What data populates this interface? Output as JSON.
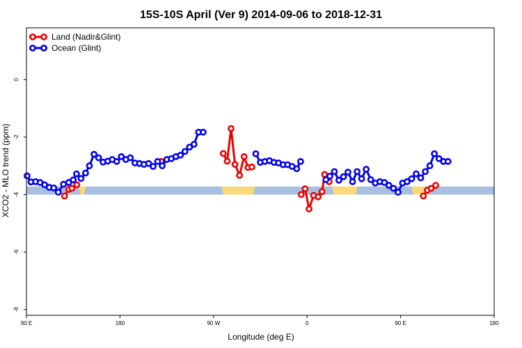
{
  "chart_data": {
    "type": "line",
    "title": "15S-10S April (Ver 9)   2014-09-06 to 2018-12-31",
    "xlabel": "Longitude (deg E)",
    "ylabel": "XCO2 - MLO trend (ppm)",
    "x_domain": [
      90,
      450
    ],
    "xlim": [
      90,
      450
    ],
    "ylim": [
      -8.2,
      1.8
    ],
    "x_ticks": [
      {
        "value": 90,
        "label": "90 E"
      },
      {
        "value": 162,
        "label": "180"
      },
      {
        "value": 234,
        "label": "90 W"
      },
      {
        "value": 306,
        "label": "0"
      },
      {
        "value": 378,
        "label": "90 E"
      },
      {
        "value": 450,
        "label": "180"
      }
    ],
    "y_ticks": [
      {
        "value": 0,
        "label": "0"
      },
      {
        "value": -2,
        "label": "-2"
      },
      {
        "value": -4,
        "label": "-4"
      },
      {
        "value": -6,
        "label": "-6"
      },
      {
        "value": -8,
        "label": "-8"
      }
    ],
    "legend_position": "top-left",
    "colors": {
      "land": "#ee0000",
      "ocean": "#0000ee",
      "ocean_band": "#a7bfe0",
      "land_band": "#f9d97a"
    },
    "band": {
      "y_range": [
        -4.0,
        -3.72
      ],
      "land_segments": [
        [
          130,
          136
        ],
        [
          240,
          266
        ],
        [
          325,
          345
        ],
        [
          386,
          400
        ]
      ]
    },
    "series": [
      {
        "name": "Land (Nadir&Glint)",
        "key": "land",
        "segments": [
          [
            [
              119.3,
              -4.05
            ],
            [
              122.5,
              -3.82
            ],
            [
              125.0,
              -3.78
            ],
            [
              128.8,
              -3.66
            ]
          ],
          [
            [
              193.7,
              -2.85
            ]
          ],
          [
            [
              241.5,
              -2.57
            ],
            [
              244.5,
              -2.84
            ],
            [
              247.5,
              -1.7
            ],
            [
              250.5,
              -2.95
            ],
            [
              254.0,
              -3.33
            ],
            [
              257.5,
              -2.68
            ],
            [
              260.5,
              -3.06
            ],
            [
              263.5,
              -3.04
            ]
          ],
          [
            [
              301.5,
              -4.0
            ],
            [
              304.5,
              -3.8
            ],
            [
              307.5,
              -4.5
            ],
            [
              311.0,
              -4.03
            ],
            [
              314.5,
              -4.08
            ],
            [
              317.5,
              -3.9
            ],
            [
              319.5,
              -3.3
            ],
            [
              323.0,
              -3.55
            ]
          ],
          [
            [
              395.5,
              -4.05
            ],
            [
              398.5,
              -3.85
            ],
            [
              401.5,
              -3.78
            ],
            [
              405.0,
              -3.68
            ]
          ]
        ]
      },
      {
        "name": "Ocean (Glint)",
        "key": "ocean",
        "segments": [
          [
            [
              90.5,
              -3.35
            ],
            [
              93.5,
              -3.56
            ],
            [
              97.0,
              -3.55
            ],
            [
              100.5,
              -3.58
            ],
            [
              104.0,
              -3.66
            ],
            [
              107.5,
              -3.75
            ],
            [
              111.0,
              -3.77
            ],
            [
              114.5,
              -3.92
            ],
            [
              118.5,
              -3.64
            ],
            [
              122.5,
              -3.58
            ],
            [
              126.0,
              -3.49
            ],
            [
              128.5,
              -3.28
            ],
            [
              132.0,
              -3.44
            ],
            [
              135.5,
              -3.25
            ],
            [
              138.5,
              -3.0
            ],
            [
              142.0,
              -2.6
            ],
            [
              145.5,
              -2.72
            ],
            [
              149.0,
              -2.87
            ],
            [
              152.5,
              -2.84
            ],
            [
              156.0,
              -2.78
            ],
            [
              159.5,
              -2.85
            ],
            [
              163.0,
              -2.68
            ],
            [
              166.5,
              -2.78
            ],
            [
              170.0,
              -2.72
            ],
            [
              173.5,
              -2.9
            ],
            [
              177.0,
              -2.92
            ],
            [
              180.5,
              -2.95
            ],
            [
              184.0,
              -2.92
            ],
            [
              187.5,
              -3.02
            ],
            [
              191.0,
              -2.85
            ],
            [
              194.5,
              -3.0
            ],
            [
              198.0,
              -2.78
            ],
            [
              201.5,
              -2.75
            ],
            [
              205.0,
              -2.68
            ],
            [
              208.5,
              -2.63
            ],
            [
              212.0,
              -2.5
            ],
            [
              215.5,
              -2.35
            ],
            [
              219.0,
              -2.25
            ],
            [
              222.5,
              -1.83
            ],
            [
              226.0,
              -1.83
            ]
          ],
          [
            [
              266.5,
              -2.58
            ],
            [
              270.0,
              -2.88
            ],
            [
              273.5,
              -2.85
            ],
            [
              277.0,
              -2.82
            ],
            [
              280.5,
              -2.88
            ],
            [
              284.0,
              -2.9
            ],
            [
              287.5,
              -2.96
            ],
            [
              291.0,
              -2.96
            ],
            [
              294.5,
              -3.02
            ],
            [
              298.0,
              -3.1
            ],
            [
              301.0,
              -2.85
            ]
          ],
          [
            [
              320.5,
              -3.48
            ],
            [
              323.5,
              -3.36
            ],
            [
              327.0,
              -3.2
            ],
            [
              330.5,
              -3.5
            ],
            [
              334.0,
              -3.38
            ],
            [
              337.5,
              -3.22
            ],
            [
              341.0,
              -3.55
            ],
            [
              344.5,
              -3.2
            ],
            [
              348.0,
              -3.45
            ],
            [
              351.5,
              -3.12
            ],
            [
              355.0,
              -3.48
            ],
            [
              358.5,
              -3.6
            ],
            [
              362.0,
              -3.55
            ],
            [
              365.5,
              -3.58
            ],
            [
              369.0,
              -3.68
            ],
            [
              372.5,
              -3.78
            ],
            [
              376.0,
              -3.92
            ],
            [
              379.5,
              -3.6
            ],
            [
              383.0,
              -3.55
            ],
            [
              386.5,
              -3.45
            ],
            [
              390.0,
              -3.28
            ],
            [
              393.5,
              -3.42
            ],
            [
              397.0,
              -3.2
            ],
            [
              400.5,
              -3.0
            ],
            [
              404.0,
              -2.58
            ],
            [
              407.5,
              -2.75
            ],
            [
              411.0,
              -2.85
            ],
            [
              414.5,
              -2.85
            ]
          ]
        ]
      }
    ]
  }
}
